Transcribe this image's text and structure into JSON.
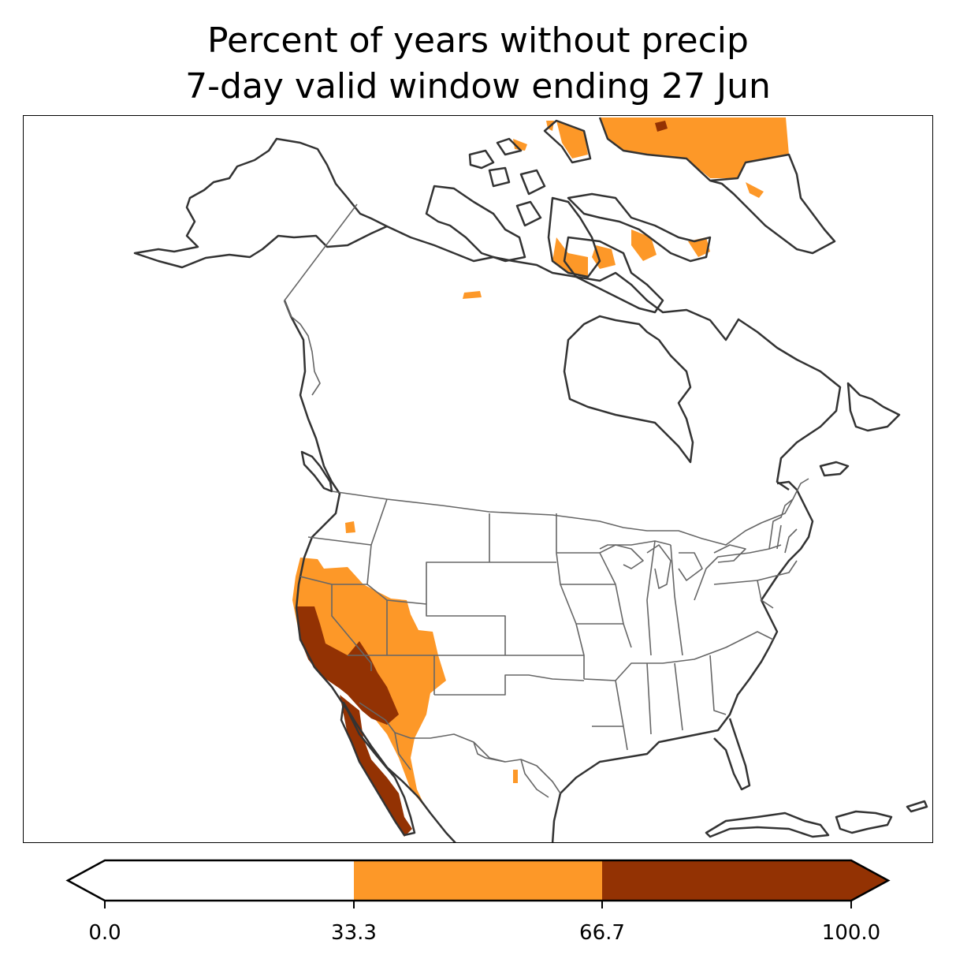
{
  "title": {
    "line1": "Percent of years without precip",
    "line2": "7-day valid window ending 27 Jun"
  },
  "map": {
    "region": "North America",
    "projection": "conic",
    "coastline_color": "#333333",
    "border_color": "#666666"
  },
  "legend": {
    "type": "colorbar",
    "orientation": "horizontal",
    "extend": "both",
    "ticks": [
      "0.0",
      "33.3",
      "66.7",
      "100.0"
    ],
    "bins": [
      {
        "range": [
          0.0,
          33.3
        ],
        "color": "#ffffff"
      },
      {
        "range": [
          33.3,
          66.7
        ],
        "color": "#fd9828"
      },
      {
        "range": [
          66.7,
          100.0
        ],
        "color": "#933203"
      }
    ]
  }
}
